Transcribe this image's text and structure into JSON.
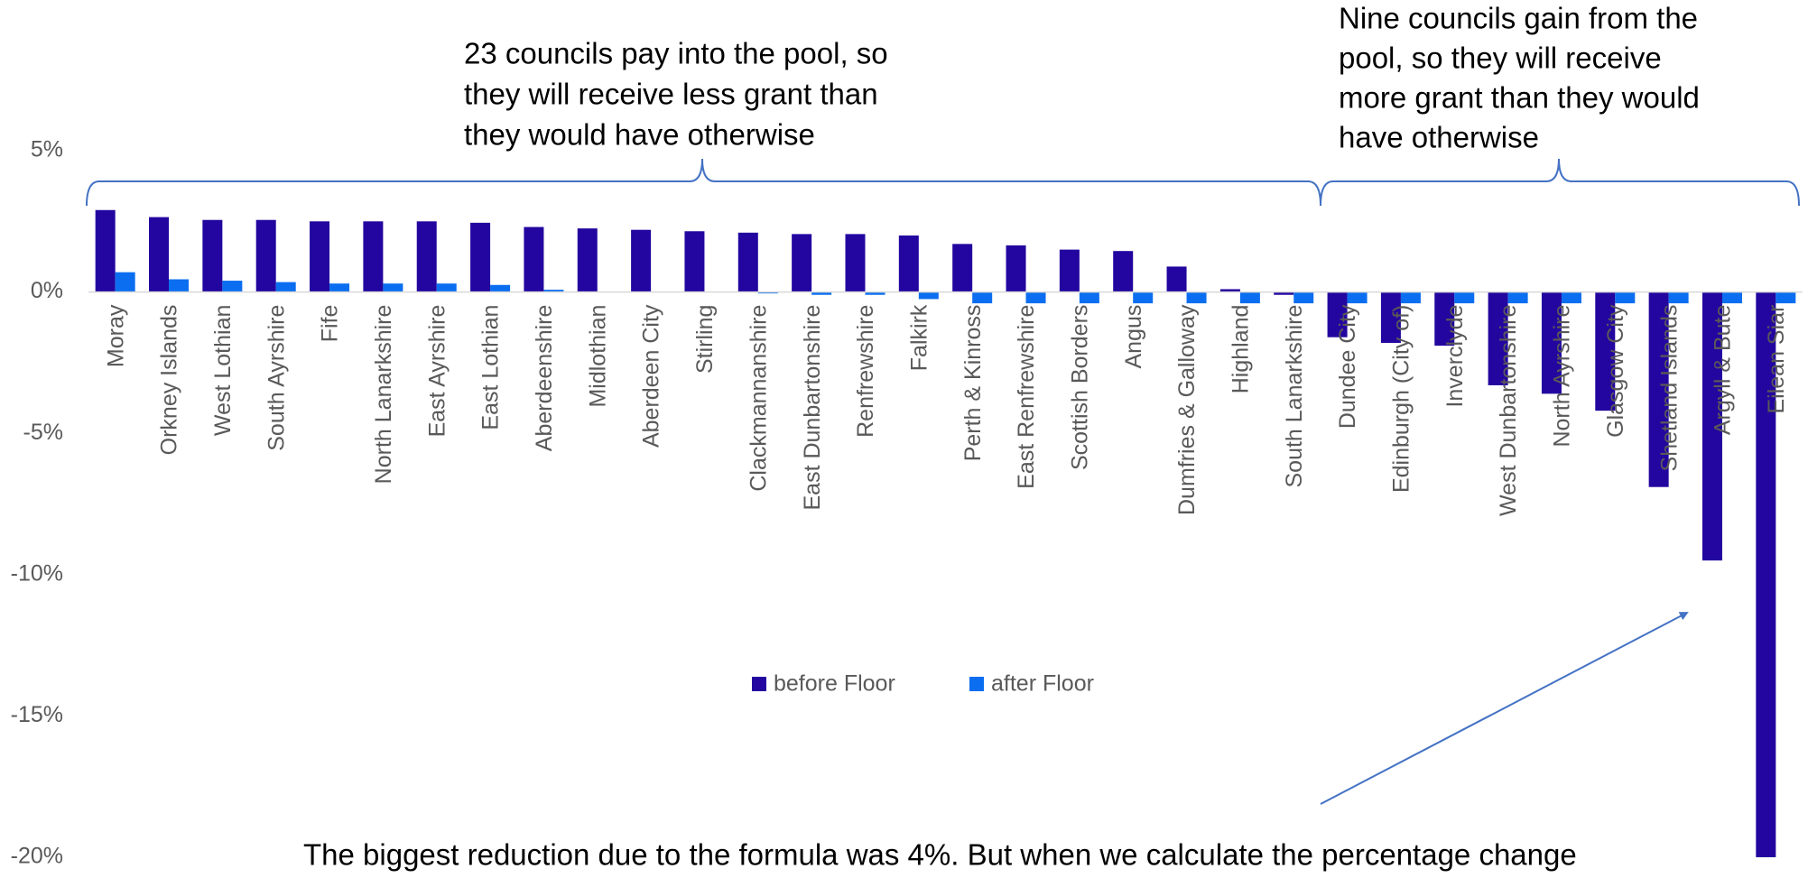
{
  "chart_data": {
    "type": "bar",
    "categories": [
      "Moray",
      "Orkney Islands",
      "West Lothian",
      "South Ayrshire",
      "Fife",
      "North Lanarkshire",
      "East Ayrshire",
      "East Lothian",
      "Aberdeenshire",
      "Midlothian",
      "Aberdeen City",
      "Stirling",
      "Clackmannanshire",
      "East Dunbartonshire",
      "Renfrewshire",
      "Falkirk",
      "Perth & Kinross",
      "East Renfrewshire",
      "Scottish Borders",
      "Angus",
      "Dumfries & Galloway",
      "Highland",
      "South Lanarkshire",
      "Dundee City",
      "Edinburgh (City of)",
      "Inverclyde",
      "West Dunbartonshire",
      "North Ayrshire",
      "Glasgow City",
      "Shetland Islands",
      "Argyll & Bute",
      "Eilean Siar"
    ],
    "series": [
      {
        "name": "before Floor",
        "color": "#23069f",
        "values": [
          2.9,
          2.65,
          2.55,
          2.55,
          2.5,
          2.5,
          2.5,
          2.45,
          2.3,
          2.25,
          2.2,
          2.15,
          2.1,
          2.05,
          2.05,
          2.0,
          1.7,
          1.65,
          1.5,
          1.45,
          0.9,
          0.1,
          -0.1,
          -1.6,
          -1.8,
          -1.9,
          -3.3,
          -3.6,
          -4.2,
          -6.9,
          -9.5,
          -20
        ]
      },
      {
        "name": "after Floor",
        "color": "#0b6ef0",
        "values": [
          0.7,
          0.45,
          0.4,
          0.35,
          0.3,
          0.3,
          0.3,
          0.25,
          0.08,
          0,
          0,
          0,
          -0.05,
          -0.1,
          -0.1,
          -0.25,
          -0.4,
          -0.4,
          -0.4,
          -0.4,
          -0.4,
          -0.4,
          -0.4,
          -0.4,
          -0.4,
          -0.4,
          -0.4,
          -0.4,
          -0.4,
          -0.4,
          -0.4,
          -0.4
        ]
      }
    ],
    "ylim": [
      -20,
      5
    ],
    "yticks": [
      {
        "value": 5,
        "label": "5%"
      },
      {
        "value": 0,
        "label": "0%"
      },
      {
        "value": -5,
        "label": "-5%"
      },
      {
        "value": -10,
        "label": "-10%"
      },
      {
        "value": -15,
        "label": "-15%"
      },
      {
        "value": -20,
        "label": "-20%"
      }
    ],
    "grid": false,
    "annotations": [
      [
        "23 councils pay into the pool, so",
        "they will receive less grant than",
        "they would have otherwise"
      ],
      [
        "Nine councils gain from the",
        "pool, so they will receive",
        "more grant than they would",
        "have otherwise"
      ],
      [
        "The biggest reduction due to the formula was 4%. But when we calculate the percentage change"
      ]
    ]
  }
}
